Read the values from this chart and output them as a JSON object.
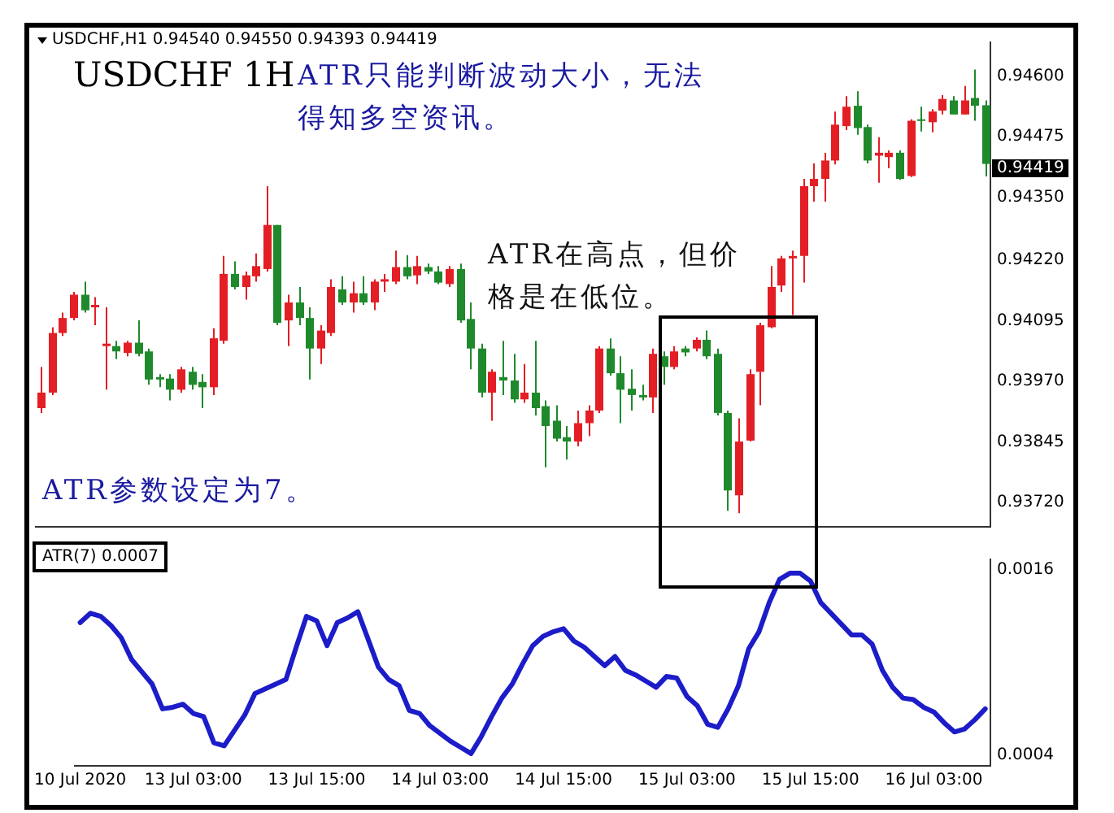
{
  "chart_data": [
    {
      "type": "candlestick",
      "title": "USDCHF 1H",
      "annotations": [
        "USDCHF,H1  0.94540 0.94550 0.94393 0.94419",
        "ATR只能判断波动大小，无法得知多空资讯。",
        "ATR在高点，但价格是在低位。",
        "ATR参数设定为7。",
        "0.94419"
      ],
      "ohlc": [
        [
          0.93915,
          0.94,
          0.93905,
          0.93947
        ],
        [
          0.93947,
          0.94082,
          0.93942,
          0.9407
        ],
        [
          0.9407,
          0.94112,
          0.94064,
          0.94101
        ],
        [
          0.94101,
          0.94155,
          0.94096,
          0.94149
        ],
        [
          0.94149,
          0.94176,
          0.94112,
          0.94117
        ],
        [
          0.94123,
          0.94144,
          0.94086,
          0.94128
        ],
        [
          0.94043,
          0.94123,
          0.93953,
          0.94048
        ],
        [
          0.94043,
          0.94054,
          0.94016,
          0.94032
        ],
        [
          0.94029,
          0.94054,
          0.94022,
          0.9405
        ],
        [
          0.9405,
          0.94096,
          0.94022,
          0.94027
        ],
        [
          0.94032,
          0.94038,
          0.93963,
          0.93974
        ],
        [
          0.93979,
          0.93985,
          0.93958,
          0.93974
        ],
        [
          0.93976,
          0.93985,
          0.93931,
          0.93953
        ],
        [
          0.93953,
          0.94,
          0.93947,
          0.93995
        ],
        [
          0.9399,
          0.94,
          0.93953,
          0.93963
        ],
        [
          0.93969,
          0.93985,
          0.93915,
          0.93958
        ],
        [
          0.93958,
          0.9408,
          0.93942,
          0.94059
        ],
        [
          0.94054,
          0.94229,
          0.94048,
          0.94192
        ],
        [
          0.94192,
          0.94218,
          0.9416,
          0.94165
        ],
        [
          0.94165,
          0.94197,
          0.94139,
          0.94189
        ],
        [
          0.94187,
          0.94234,
          0.94176,
          0.94208
        ],
        [
          0.94202,
          0.94373,
          0.94197,
          0.94293
        ],
        [
          0.94293,
          0.94293,
          0.94086,
          0.94091
        ],
        [
          0.94096,
          0.94149,
          0.94043,
          0.94133
        ],
        [
          0.94133,
          0.94165,
          0.94086,
          0.94101
        ],
        [
          0.94101,
          0.94123,
          0.93974,
          0.94038
        ],
        [
          0.94038,
          0.94086,
          0.94006,
          0.94075
        ],
        [
          0.9407,
          0.94181,
          0.94064,
          0.94165
        ],
        [
          0.9416,
          0.94187,
          0.94128,
          0.94133
        ],
        [
          0.94133,
          0.94176,
          0.94112,
          0.94152
        ],
        [
          0.94152,
          0.94187,
          0.94128,
          0.94133
        ],
        [
          0.94133,
          0.94181,
          0.94117,
          0.94176
        ],
        [
          0.94176,
          0.94192,
          0.94155,
          0.94181
        ],
        [
          0.94176,
          0.9424,
          0.94171,
          0.94206
        ],
        [
          0.94206,
          0.94231,
          0.94181,
          0.94187
        ],
        [
          0.94189,
          0.94229,
          0.94171,
          0.94208
        ],
        [
          0.94206,
          0.94213,
          0.94192,
          0.94197
        ],
        [
          0.94197,
          0.94208,
          0.94171,
          0.94174
        ],
        [
          0.94171,
          0.94208,
          0.94165,
          0.94202
        ],
        [
          0.94202,
          0.94213,
          0.94091,
          0.94096
        ],
        [
          0.94099,
          0.94133,
          0.93995,
          0.94038
        ],
        [
          0.94038,
          0.94048,
          0.93937,
          0.93947
        ],
        [
          0.93947,
          0.93995,
          0.93889,
          0.9399
        ],
        [
          0.93979,
          0.94054,
          0.93942,
          0.93972
        ],
        [
          0.93972,
          0.94027,
          0.93926,
          0.93933
        ],
        [
          0.93933,
          0.94006,
          0.93926,
          0.93947
        ],
        [
          0.93947,
          0.94054,
          0.939,
          0.93915
        ],
        [
          0.93919,
          0.93931,
          0.93793,
          0.93878
        ],
        [
          0.93889,
          0.93921,
          0.93846,
          0.93852
        ],
        [
          0.93855,
          0.93878,
          0.93809,
          0.93846
        ],
        [
          0.93846,
          0.9391,
          0.93836,
          0.93884
        ],
        [
          0.93884,
          0.93921,
          0.93857,
          0.9391
        ],
        [
          0.9391,
          0.94043,
          0.93905,
          0.94038
        ],
        [
          0.94038,
          0.94059,
          0.93982,
          0.93987
        ],
        [
          0.93987,
          0.94022,
          0.93884,
          0.93953
        ],
        [
          0.93955,
          0.93995,
          0.9391,
          0.93942
        ],
        [
          0.93942,
          0.93963,
          0.93931,
          0.93937
        ],
        [
          0.93937,
          0.94038,
          0.93905,
          0.94027
        ],
        [
          0.94022,
          0.94032,
          0.93963,
          0.94
        ],
        [
          0.94,
          0.94043,
          0.93995,
          0.94032
        ],
        [
          0.94038,
          0.94043,
          0.94022,
          0.9403
        ],
        [
          0.94038,
          0.94061,
          0.94032,
          0.94056
        ],
        [
          0.94056,
          0.94075,
          0.94016,
          0.94022
        ],
        [
          0.94027,
          0.94038,
          0.939,
          0.93905
        ],
        [
          0.93905,
          0.9391,
          0.93703,
          0.93745
        ],
        [
          0.93735,
          0.93894,
          0.93698,
          0.93846
        ],
        [
          0.93848,
          0.93995,
          0.93846,
          0.93985
        ],
        [
          0.9399,
          0.94091,
          0.93921,
          0.94086
        ],
        [
          0.94082,
          0.94208,
          0.9408,
          0.94165
        ],
        [
          0.94168,
          0.94229,
          0.94155,
          0.94224
        ],
        [
          0.94224,
          0.9424,
          0.94107,
          0.94229
        ],
        [
          0.94229,
          0.94388,
          0.94174,
          0.94373
        ],
        [
          0.94373,
          0.9442,
          0.94341,
          0.94388
        ],
        [
          0.94388,
          0.94442,
          0.94341,
          0.94426
        ],
        [
          0.94426,
          0.94527,
          0.94418,
          0.945
        ],
        [
          0.94497,
          0.94559,
          0.94489,
          0.94537
        ],
        [
          0.94539,
          0.94569,
          0.94479,
          0.94493
        ],
        [
          0.94495,
          0.945,
          0.9442,
          0.94426
        ],
        [
          0.94436,
          0.94474,
          0.9438,
          0.94442
        ],
        [
          0.94433,
          0.94447,
          0.9441,
          0.94442
        ],
        [
          0.94442,
          0.94447,
          0.94386,
          0.94388
        ],
        [
          0.94394,
          0.94511,
          0.94392,
          0.94508
        ],
        [
          0.94511,
          0.94537,
          0.94486,
          0.94508
        ],
        [
          0.94505,
          0.94532,
          0.94484,
          0.94527
        ],
        [
          0.94529,
          0.94561,
          0.94521,
          0.94553
        ],
        [
          0.9455,
          0.94559,
          0.94521,
          0.94521
        ],
        [
          0.94521,
          0.9458,
          0.94521,
          0.9455
        ],
        [
          0.94555,
          0.94614,
          0.94508,
          0.94539
        ],
        [
          0.9454,
          0.9455,
          0.94393,
          0.94419
        ]
      ],
      "colors": [
        "#e31e24",
        "#e31e24",
        "#e31e24",
        "#e31e24",
        "#1f8a2b",
        "#e31e24",
        "#e31e24",
        "#1f8a2b",
        "#e31e24",
        "#1f8a2b",
        "#1f8a2b",
        "#1f8a2b",
        "#1f8a2b",
        "#e31e24",
        "#1f8a2b",
        "#1f8a2b",
        "#e31e24",
        "#e31e24",
        "#1f8a2b",
        "#e31e24",
        "#e31e24",
        "#e31e24",
        "#1f8a2b",
        "#e31e24",
        "#1f8a2b",
        "#1f8a2b",
        "#e31e24",
        "#e31e24",
        "#1f8a2b",
        "#e31e24",
        "#1f8a2b",
        "#e31e24",
        "#e31e24",
        "#e31e24",
        "#1f8a2b",
        "#e31e24",
        "#1f8a2b",
        "#1f8a2b",
        "#e31e24",
        "#1f8a2b",
        "#1f8a2b",
        "#1f8a2b",
        "#e31e24",
        "#1f8a2b",
        "#1f8a2b",
        "#e31e24",
        "#1f8a2b",
        "#1f8a2b",
        "#1f8a2b",
        "#1f8a2b",
        "#e31e24",
        "#e31e24",
        "#e31e24",
        "#1f8a2b",
        "#1f8a2b",
        "#1f8a2b",
        "#1f8a2b",
        "#e31e24",
        "#1f8a2b",
        "#e31e24",
        "#1f8a2b",
        "#e31e24",
        "#1f8a2b",
        "#1f8a2b",
        "#1f8a2b",
        "#e31e24",
        "#e31e24",
        "#e31e24",
        "#e31e24",
        "#e31e24",
        "#e31e24",
        "#e31e24",
        "#e31e24",
        "#e31e24",
        "#e31e24",
        "#e31e24",
        "#1f8a2b",
        "#1f8a2b",
        "#e31e24",
        "#e31e24",
        "#1f8a2b",
        "#e31e24",
        "#1f8a2b",
        "#e31e24",
        "#e31e24",
        "#1f8a2b",
        "#e31e24",
        "#1f8a2b",
        "#1f8a2b"
      ],
      "ylim": [
        0.9367,
        0.9467
      ],
      "yticks": [
        {
          "value": 0.946,
          "label": "0.94600"
        },
        {
          "value": 0.94475,
          "label": "0.94475"
        },
        {
          "value": 0.9435,
          "label": "0.94350"
        },
        {
          "value": 0.9422,
          "label": "0.94220"
        },
        {
          "value": 0.94095,
          "label": "0.94095"
        },
        {
          "value": 0.9397,
          "label": "0.93970"
        },
        {
          "value": 0.93845,
          "label": "0.93845"
        },
        {
          "value": 0.9372,
          "label": "0.93720"
        }
      ],
      "tick_labels": "y"
    },
    {
      "type": "line",
      "title": "ATR(7) 0.0007",
      "categories": [
        "10 Jul 2020",
        null,
        null,
        null,
        null,
        null,
        null,
        null,
        null,
        null,
        null,
        "13 Jul 03:00",
        null,
        null,
        null,
        null,
        null,
        null,
        null,
        null,
        null,
        null,
        null,
        "13 Jul 15:00",
        null,
        null,
        null,
        null,
        null,
        null,
        null,
        null,
        null,
        null,
        null,
        "14 Jul 03:00",
        null,
        null,
        null,
        null,
        null,
        null,
        null,
        null,
        null,
        null,
        null,
        "14 Jul 15:00",
        null,
        null,
        null,
        null,
        null,
        null,
        null,
        null,
        null,
        null,
        null,
        "15 Jul 03:00",
        null,
        null,
        null,
        null,
        null,
        null,
        null,
        null,
        null,
        null,
        null,
        "15 Jul 15:00",
        null,
        null,
        null,
        null,
        null,
        null,
        null,
        null,
        null,
        null,
        null,
        "16 Jul 03:00",
        null,
        null,
        null,
        null,
        null
      ],
      "series": [
        {
          "color": "#1c1cc8",
          "values": [
            0.00126,
            0.00132,
            0.0013,
            0.00124,
            0.00116,
            0.00102,
            0.00094,
            0.00086,
            0.0007,
            0.00071,
            0.00073,
            0.00067,
            0.00065,
            0.00048,
            0.00046,
            0.00056,
            0.00066,
            0.0008,
            0.00083,
            0.00086,
            0.00089,
            0.0011,
            0.0013,
            0.00127,
            0.00111,
            0.00126,
            0.00129,
            0.00133,
            0.00115,
            0.00097,
            0.00089,
            0.00085,
            0.00069,
            0.00067,
            0.00059,
            0.00054,
            0.00049,
            0.00045,
            0.00041,
            0.00052,
            0.00065,
            0.00077,
            0.00086,
            0.00099,
            0.00111,
            0.00117,
            0.0012,
            0.00122,
            0.00114,
            0.0011,
            0.00104,
            0.00098,
            0.00104,
            0.00095,
            0.00092,
            0.00088,
            0.00084,
            0.00091,
            0.0009,
            0.00078,
            0.00072,
            0.0006,
            0.00058,
            0.0007,
            0.00085,
            0.00109,
            0.0012,
            0.00139,
            0.00154,
            0.00158,
            0.00158,
            0.00153,
            0.00139,
            0.00132,
            0.00125,
            0.00118,
            0.00118,
            0.00112,
            0.00095,
            0.00084,
            0.00077,
            0.00076,
            0.00071,
            0.00068,
            0.00061,
            0.00055,
            0.00057,
            0.00063,
            0.0007
          ]
        }
      ],
      "ylim": [
        0.00033,
        0.00167
      ],
      "yticks": [
        0.0016,
        0.0004
      ]
    }
  ]
}
